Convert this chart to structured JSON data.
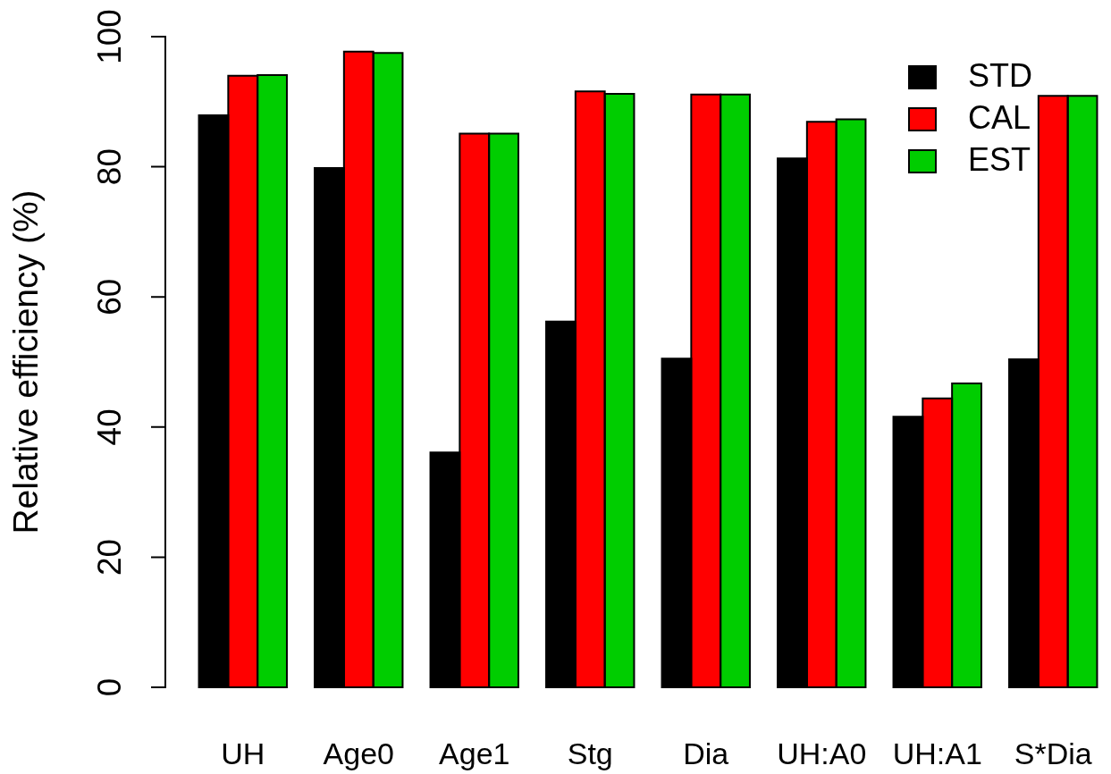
{
  "chart_data": {
    "type": "bar",
    "ylabel": "Relative efficiency (%)",
    "categories": [
      "UH",
      "Age0",
      "Age1",
      "Stg",
      "Dia",
      "UH:A0",
      "UH:A1",
      "S*Dia"
    ],
    "series": [
      {
        "name": "STD",
        "color": "#000000",
        "values": [
          87.9,
          79.8,
          36.1,
          56.2,
          50.5,
          81.3,
          41.6,
          50.4
        ]
      },
      {
        "name": "CAL",
        "color": "#ff0000",
        "values": [
          94.0,
          97.7,
          85.1,
          91.6,
          91.1,
          86.9,
          44.4,
          90.9
        ]
      },
      {
        "name": "EST",
        "color": "#00cd00",
        "values": [
          94.1,
          97.5,
          85.1,
          91.2,
          91.1,
          87.3,
          46.7,
          90.9
        ]
      }
    ],
    "ylim": [
      0,
      100
    ],
    "yticks": [
      0,
      20,
      40,
      60,
      80,
      100
    ],
    "legend": "top right"
  }
}
